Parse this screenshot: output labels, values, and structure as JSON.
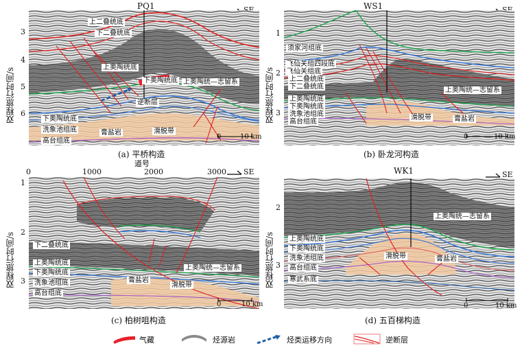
{
  "colors": {
    "gas": "#e8202a",
    "source_rock": "#8a8a8a",
    "migration": "#1f5faa",
    "fault": "#e02020",
    "upper_ordovician": "#2a6fd6",
    "lower_ordovician": "#16a34a",
    "salt": "#f2c9a0",
    "seismic_bg": "#d9d9d9"
  },
  "common": {
    "direction": "SE",
    "scale_0": "0",
    "scale_10": "10 km",
    "y_axis_label": "双程旅行时间/s"
  },
  "panels": {
    "a": {
      "caption": "(a) 平桥构造",
      "well": "PQ1",
      "ticks": [
        "3",
        "4",
        "5",
        "6"
      ],
      "labels": {
        "l1": "上二叠统底",
        "l2": "下二叠统底",
        "l3": "上奥陶统底",
        "l4": "下奥陶统底",
        "l5": "上奥陶统—志留系",
        "l6": "逆断层",
        "l7": "下奥陶统底",
        "l8": "洗象池组底",
        "l9": "膏盐岩",
        "l10": "滑脱带",
        "l11": "高台组底"
      }
    },
    "b": {
      "caption": "(b) 卧龙河构造",
      "well": "WS1",
      "ticks": [
        "1",
        "2",
        "3"
      ],
      "labels": {
        "l1": "须家河组底",
        "l2": "飞仙关组四段底",
        "l3": "飞仙关组底",
        "l4": "上二叠统底",
        "l5": "下二叠统底",
        "l6": "上奥陶统—志留系",
        "l7": "上奥陶统底",
        "l8": "下奥陶统底",
        "l9": "洗象池组底",
        "l10": "高台组底",
        "l11": "滑脱带",
        "l12": "膏盐岩"
      }
    },
    "c": {
      "caption": "(c) 柏树咀构造",
      "axis_title": "道号",
      "top_ticks": [
        "0",
        "1000",
        "2000",
        "3000"
      ],
      "ticks": [
        "1",
        "2",
        "3"
      ],
      "labels": {
        "l1": "下二叠统底",
        "l2": "上奥陶统底",
        "l3": "下奥陶统底",
        "l4": "洗象池组底",
        "l5": "高台组底",
        "l6": "上奥陶统—志留系",
        "l7": "膏盐岩",
        "l8": "滑脱带"
      }
    },
    "d": {
      "caption": "(d) 五百梯构造",
      "well": "WK1",
      "ticks": [
        "2",
        "3"
      ],
      "labels": {
        "l1": "上奥陶统—志留系",
        "l2": "上奥陶统底",
        "l3": "下奥陶统底",
        "l4": "洗象池组底",
        "l5": "高台组底",
        "l6": "寒武系底",
        "l7": "滑脱带",
        "l8": "膏盐岩"
      }
    }
  },
  "legend": {
    "gas": "气藏",
    "source_rock": "烃源岩",
    "migration": "烃类运移方向",
    "fault": "逆断层"
  }
}
